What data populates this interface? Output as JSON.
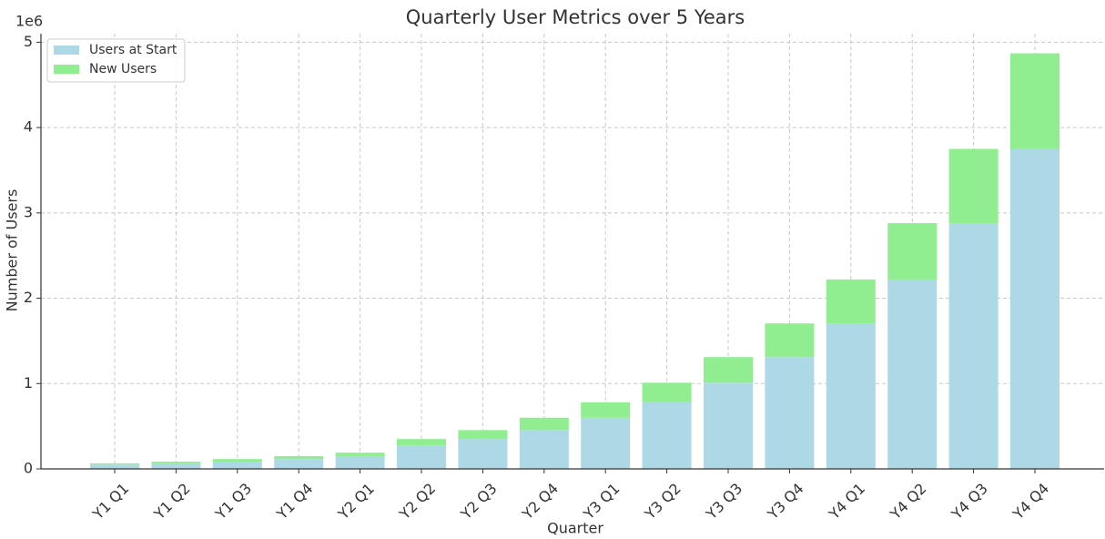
{
  "chart_data": {
    "type": "stacked_bar",
    "title": "Quarterly User Metrics over 5 Years",
    "xlabel": "Quarter",
    "ylabel": "Number of Users",
    "y_offset_label": "1e6",
    "categories": [
      "Y1 Q1",
      "Y1 Q2",
      "Y1 Q3",
      "Y1 Q4",
      "Y2 Q1",
      "Y2 Q2",
      "Y2 Q3",
      "Y2 Q4",
      "Y3 Q1",
      "Y3 Q2",
      "Y3 Q3",
      "Y3 Q4",
      "Y4 Q1",
      "Y4 Q2",
      "Y4 Q3",
      "Y4 Q4"
    ],
    "series": [
      {
        "name": "Users at Start",
        "color": "#add8e6",
        "values": [
          50000,
          65000,
          85000,
          115000,
          150000,
          275000,
          350000,
          455000,
          600000,
          780000,
          1010000,
          1310000,
          1705000,
          2220000,
          2880000,
          3750000
        ]
      },
      {
        "name": "New Users",
        "color": "#90ee90",
        "values": [
          15000,
          20000,
          30000,
          35000,
          40000,
          75000,
          105000,
          145000,
          180000,
          230000,
          300000,
          395000,
          515000,
          660000,
          870000,
          1120000
        ]
      }
    ],
    "ylim": [
      0,
      5100000
    ],
    "yticks": [
      {
        "value": 0,
        "label": "0"
      },
      {
        "value": 1000000,
        "label": "1"
      },
      {
        "value": 2000000,
        "label": "2"
      },
      {
        "value": 3000000,
        "label": "3"
      },
      {
        "value": 4000000,
        "label": "4"
      },
      {
        "value": 5000000,
        "label": "5"
      }
    ],
    "grid": true,
    "legend": "upper left"
  }
}
